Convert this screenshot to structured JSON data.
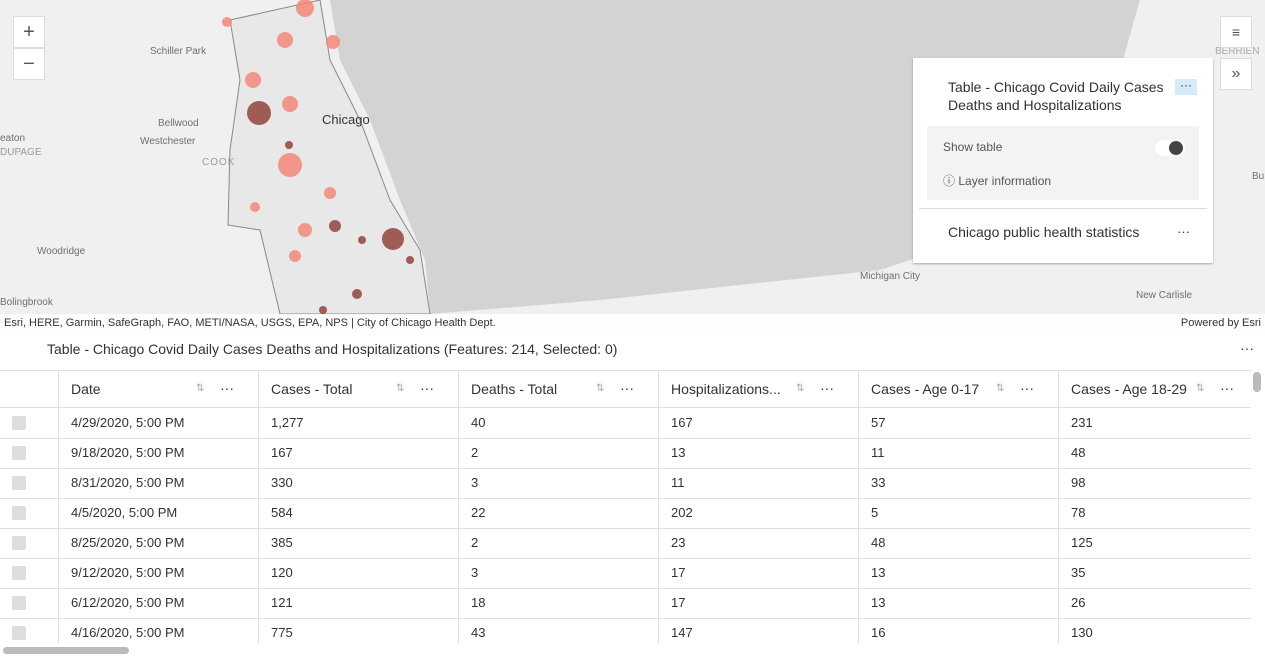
{
  "map": {
    "labels": [
      "Schiller Park",
      "Bellwood",
      "Westchester",
      "COOK",
      "Chicago",
      "eaton",
      "DUPAGE",
      "Woodridge",
      "Bolingbrook",
      "Michigan City",
      "New Carlisle",
      "BERRIEN",
      "Bu"
    ],
    "attribution": "Esri, HERE, Garmin, SafeGraph, FAO, METI/NASA, USGS, EPA, NPS | City of Chicago Health Dept.",
    "powered_by": "Powered by Esri"
  },
  "layer_list": {
    "layers": [
      {
        "title": "Table - Chicago Covid Daily Cases Deaths and Hospitalizations",
        "show_table": "Show table",
        "layer_info": "Layer information"
      },
      {
        "title": "Chicago public health statistics"
      }
    ]
  },
  "table": {
    "title": "Table - Chicago Covid Daily Cases Deaths and Hospitalizations (Features: 214, Selected: 0)",
    "columns": [
      "Date",
      "Cases - Total",
      "Deaths - Total",
      "Hospitalizations...",
      "Cases - Age 0-17",
      "Cases - Age 18-29"
    ],
    "rows": [
      [
        "4/29/2020, 5:00 PM",
        "1,277",
        "40",
        "167",
        "57",
        "231"
      ],
      [
        "9/18/2020, 5:00 PM",
        "167",
        "2",
        "13",
        "11",
        "48"
      ],
      [
        "8/31/2020, 5:00 PM",
        "330",
        "3",
        "11",
        "33",
        "98"
      ],
      [
        "4/5/2020, 5:00 PM",
        "584",
        "22",
        "202",
        "5",
        "78"
      ],
      [
        "8/25/2020, 5:00 PM",
        "385",
        "2",
        "23",
        "48",
        "125"
      ],
      [
        "9/12/2020, 5:00 PM",
        "120",
        "3",
        "17",
        "13",
        "35"
      ],
      [
        "6/12/2020, 5:00 PM",
        "121",
        "18",
        "17",
        "13",
        "26"
      ],
      [
        "4/16/2020, 5:00 PM",
        "775",
        "43",
        "147",
        "16",
        "130"
      ]
    ]
  }
}
